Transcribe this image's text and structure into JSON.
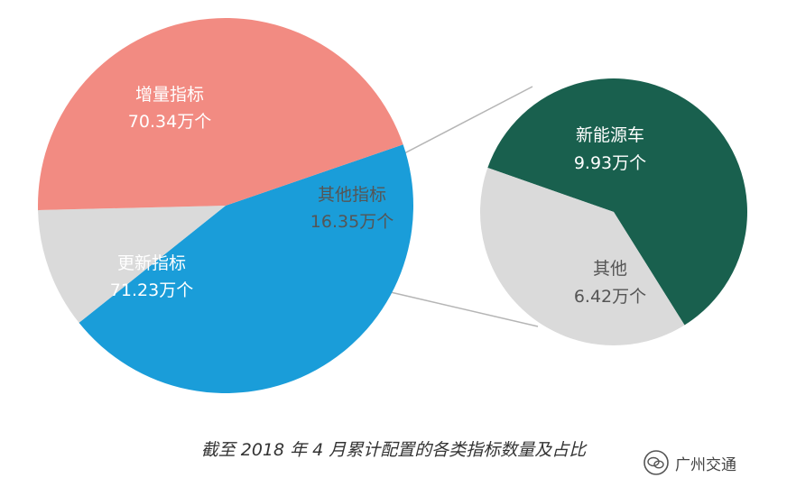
{
  "chart_data": [
    {
      "type": "pie",
      "slices": [
        {
          "label": "增量指标",
          "value_text": "70.34万个",
          "value": 70.34,
          "color": "#1a9dd9"
        },
        {
          "label": "其他指标",
          "value_text": "16.35万个",
          "value": 16.35,
          "color": "#dadada"
        },
        {
          "label": "更新指标",
          "value_text": "71.23万个",
          "value": 71.23,
          "color": "#f28b82"
        }
      ]
    },
    {
      "type": "pie",
      "slices": [
        {
          "label": "新能源车",
          "value_text": "9.93万个",
          "value": 9.93,
          "color": "#19604e"
        },
        {
          "label": "其他",
          "value_text": "6.42万个",
          "value": 6.42,
          "color": "#dadada"
        }
      ]
    }
  ],
  "caption": "截至 2018 年 4 月累计配置的各类指标数量及占比",
  "watermark": {
    "text": "广州交通",
    "icon": "wechat-icon"
  }
}
